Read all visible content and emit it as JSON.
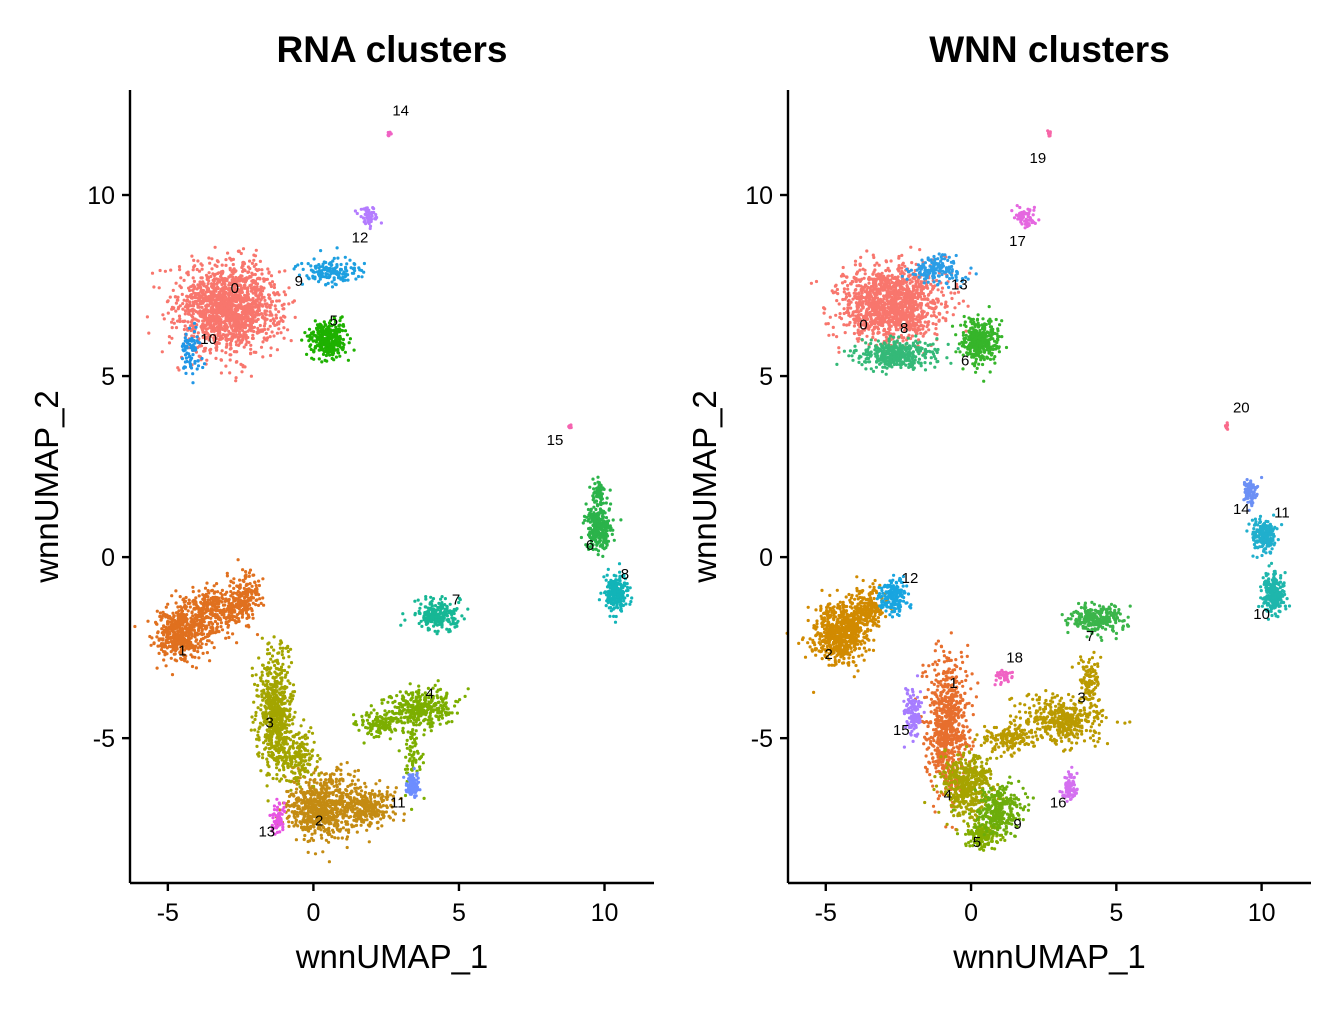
{
  "chart_data": [
    {
      "type": "scatter",
      "title": "RNA clusters",
      "xlabel": "wnnUMAP_1",
      "ylabel": "wnnUMAP_2",
      "xlim": [
        -6.3,
        11.7
      ],
      "ylim": [
        -9.0,
        12.9
      ],
      "xticks": [
        -5,
        0,
        5,
        10
      ],
      "yticks": [
        -5,
        0,
        5,
        10
      ],
      "xtick_labels": [
        "-5",
        "0",
        "5",
        "10"
      ],
      "ytick_labels": [
        "-5",
        "0",
        "5",
        "10"
      ],
      "grid": false,
      "legend": "none",
      "clusters": [
        {
          "label": "0",
          "color": "#F8766D",
          "blobs": [
            [
              -2.9,
              6.9,
              1.6,
              1.1,
              1500
            ]
          ],
          "label_pos": [
            -2.7,
            7.4
          ]
        },
        {
          "label": "1",
          "color": "#E0701F",
          "blobs": [
            [
              -4.6,
              -2.1,
              0.75,
              0.65,
              500
            ],
            [
              -3.4,
              -1.5,
              0.9,
              0.6,
              300
            ],
            [
              -2.4,
              -1.1,
              0.5,
              0.6,
              180
            ]
          ],
          "label_pos": [
            -4.5,
            -2.6
          ]
        },
        {
          "label": "2",
          "color": "#C48B12",
          "blobs": [
            [
              0.3,
              -6.9,
              1.1,
              0.8,
              700
            ],
            [
              1.9,
              -6.9,
              0.8,
              0.45,
              250
            ]
          ],
          "label_pos": [
            0.2,
            -7.3
          ]
        },
        {
          "label": "3",
          "color": "#A3A500",
          "blobs": [
            [
              -1.3,
              -4.3,
              0.55,
              1.4,
              600
            ],
            [
              -0.6,
              -5.5,
              0.6,
              0.7,
              200
            ]
          ],
          "label_pos": [
            -1.5,
            -4.6
          ]
        },
        {
          "label": "4",
          "color": "#7CAE00",
          "blobs": [
            [
              3.7,
              -4.2,
              1.0,
              0.5,
              320
            ],
            [
              2.3,
              -4.6,
              0.7,
              0.3,
              120
            ],
            [
              3.4,
              -5.5,
              0.3,
              0.9,
              80
            ]
          ],
          "label_pos": [
            4.0,
            -3.8
          ]
        },
        {
          "label": "5",
          "color": "#1EB100",
          "blobs": [
            [
              0.5,
              6.0,
              0.55,
              0.45,
              350
            ]
          ],
          "label_pos": [
            0.7,
            6.5
          ]
        },
        {
          "label": "6",
          "color": "#2BB34A",
          "blobs": [
            [
              9.8,
              0.8,
              0.4,
              0.6,
              280
            ],
            [
              9.8,
              1.8,
              0.2,
              0.3,
              60
            ]
          ],
          "label_pos": [
            9.5,
            0.3
          ]
        },
        {
          "label": "7",
          "color": "#17B795",
          "blobs": [
            [
              4.2,
              -1.6,
              0.7,
              0.4,
              220
            ]
          ],
          "label_pos": [
            4.9,
            -1.2
          ]
        },
        {
          "label": "8",
          "color": "#12B4B8",
          "blobs": [
            [
              10.4,
              -1.0,
              0.35,
              0.45,
              220
            ]
          ],
          "label_pos": [
            10.7,
            -0.5
          ]
        },
        {
          "label": "9",
          "color": "#1D9FE0",
          "blobs": [
            [
              0.6,
              7.9,
              0.9,
              0.35,
              150
            ]
          ],
          "label_pos": [
            -0.5,
            7.6
          ]
        },
        {
          "label": "10",
          "color": "#2196E6",
          "blobs": [
            [
              -4.2,
              5.7,
              0.3,
              0.55,
              80
            ]
          ],
          "label_pos": [
            -3.6,
            6.0
          ]
        },
        {
          "label": "11",
          "color": "#6D8DFF",
          "blobs": [
            [
              3.4,
              -6.3,
              0.2,
              0.35,
              90
            ]
          ],
          "label_pos": [
            2.9,
            -6.8
          ]
        },
        {
          "label": "12",
          "color": "#B47CFF",
          "blobs": [
            [
              1.9,
              9.4,
              0.3,
              0.2,
              50
            ]
          ],
          "label_pos": [
            1.6,
            8.8
          ]
        },
        {
          "label": "13",
          "color": "#E754E2",
          "blobs": [
            [
              -1.2,
              -7.2,
              0.2,
              0.35,
              60
            ]
          ],
          "label_pos": [
            -1.6,
            -7.6
          ]
        },
        {
          "label": "14",
          "color": "#F062C4",
          "blobs": [
            [
              2.6,
              11.7,
              0.05,
              0.06,
              10
            ]
          ],
          "label_pos": [
            3.0,
            12.3
          ]
        },
        {
          "label": "15",
          "color": "#F564B0",
          "blobs": [
            [
              8.8,
              3.6,
              0.06,
              0.06,
              10
            ]
          ],
          "label_pos": [
            8.3,
            3.2
          ]
        }
      ]
    },
    {
      "type": "scatter",
      "title": "WNN clusters",
      "xlabel": "wnnUMAP_1",
      "ylabel": "wnnUMAP_2",
      "xlim": [
        -6.3,
        11.7
      ],
      "ylim": [
        -9.0,
        12.9
      ],
      "xticks": [
        -5,
        0,
        5,
        10
      ],
      "yticks": [
        -5,
        0,
        5,
        10
      ],
      "xtick_labels": [
        "-5",
        "0",
        "5",
        "10"
      ],
      "ytick_labels": [
        "-5",
        "0",
        "5",
        "10"
      ],
      "grid": false,
      "legend": "none",
      "clusters": [
        {
          "label": "0",
          "color": "#F8766D",
          "blobs": [
            [
              -2.7,
              7.0,
              1.55,
              0.95,
              1300
            ]
          ],
          "label_pos": [
            -3.7,
            6.4
          ]
        },
        {
          "label": "1",
          "color": "#E76F2E",
          "blobs": [
            [
              -0.8,
              -4.6,
              0.6,
              1.7,
              700
            ]
          ],
          "label_pos": [
            -0.6,
            -3.5
          ]
        },
        {
          "label": "2",
          "color": "#D18A00",
          "blobs": [
            [
              -4.5,
              -2.1,
              0.85,
              0.75,
              650
            ],
            [
              -3.6,
              -1.4,
              0.6,
              0.5,
              200
            ]
          ],
          "label_pos": [
            -4.9,
            -2.7
          ]
        },
        {
          "label": "3",
          "color": "#BA9A00",
          "blobs": [
            [
              3.2,
              -4.5,
              1.3,
              0.55,
              400
            ],
            [
              1.3,
              -5.0,
              0.8,
              0.35,
              150
            ],
            [
              4.1,
              -3.5,
              0.35,
              0.6,
              100
            ]
          ],
          "label_pos": [
            3.8,
            -3.9
          ]
        },
        {
          "label": "4",
          "color": "#A6A300",
          "blobs": [
            [
              -0.1,
              -6.3,
              0.75,
              0.8,
              450
            ]
          ],
          "label_pos": [
            -0.8,
            -6.6
          ]
        },
        {
          "label": "5",
          "color": "#82AD00",
          "blobs": [
            [
              0.4,
              -7.7,
              0.55,
              0.3,
              160
            ]
          ],
          "label_pos": [
            0.2,
            -7.9
          ]
        },
        {
          "label": "6",
          "color": "#36B52A",
          "blobs": [
            [
              0.3,
              6.0,
              0.55,
              0.55,
              380
            ]
          ],
          "label_pos": [
            -0.2,
            5.4
          ]
        },
        {
          "label": "7",
          "color": "#3BB54A",
          "blobs": [
            [
              4.3,
              -1.7,
              0.8,
              0.35,
              260
            ]
          ],
          "label_pos": [
            4.1,
            -2.2
          ]
        },
        {
          "label": "8",
          "color": "#35B978",
          "blobs": [
            [
              -2.6,
              5.6,
              1.2,
              0.35,
              380
            ]
          ],
          "label_pos": [
            -2.3,
            6.3
          ]
        },
        {
          "label": "9",
          "color": "#6DAD0B",
          "blobs": [
            [
              1.0,
              -7.0,
              0.7,
              0.55,
              300
            ]
          ],
          "label_pos": [
            1.6,
            -7.4
          ]
        },
        {
          "label": "10",
          "color": "#1FB6AC",
          "blobs": [
            [
              10.4,
              -1.0,
              0.35,
              0.5,
              230
            ]
          ],
          "label_pos": [
            10.0,
            -1.6
          ]
        },
        {
          "label": "11",
          "color": "#21AFCD",
          "blobs": [
            [
              10.1,
              0.6,
              0.4,
              0.4,
              200
            ]
          ],
          "label_pos": [
            10.7,
            1.2
          ]
        },
        {
          "label": "12",
          "color": "#19A5E0",
          "blobs": [
            [
              -2.7,
              -1.1,
              0.45,
              0.45,
              180
            ]
          ],
          "label_pos": [
            -2.1,
            -0.6
          ]
        },
        {
          "label": "13",
          "color": "#2A9DE6",
          "blobs": [
            [
              -1.2,
              7.9,
              0.9,
              0.35,
              160
            ]
          ],
          "label_pos": [
            -0.4,
            7.5
          ]
        },
        {
          "label": "14",
          "color": "#6C90F5",
          "blobs": [
            [
              9.6,
              1.8,
              0.25,
              0.3,
              80
            ]
          ],
          "label_pos": [
            9.3,
            1.3
          ]
        },
        {
          "label": "15",
          "color": "#A77DFF",
          "blobs": [
            [
              -2.0,
              -4.3,
              0.25,
              0.7,
              120
            ]
          ],
          "label_pos": [
            -2.4,
            -4.8
          ]
        },
        {
          "label": "16",
          "color": "#D470F0",
          "blobs": [
            [
              3.4,
              -6.4,
              0.2,
              0.35,
              80
            ]
          ],
          "label_pos": [
            3.0,
            -6.8
          ]
        },
        {
          "label": "17",
          "color": "#E567E0",
          "blobs": [
            [
              1.9,
              9.4,
              0.35,
              0.25,
              60
            ]
          ],
          "label_pos": [
            1.6,
            8.7
          ]
        },
        {
          "label": "18",
          "color": "#F063C4",
          "blobs": [
            [
              1.1,
              -3.3,
              0.3,
              0.15,
              40
            ]
          ],
          "label_pos": [
            1.5,
            -2.8
          ]
        },
        {
          "label": "19",
          "color": "#F766A8",
          "blobs": [
            [
              2.7,
              11.7,
              0.06,
              0.07,
              12
            ]
          ],
          "label_pos": [
            2.3,
            11.0
          ]
        },
        {
          "label": "20",
          "color": "#FA6B8B",
          "blobs": [
            [
              8.8,
              3.6,
              0.06,
              0.06,
              12
            ]
          ],
          "label_pos": [
            9.3,
            4.1
          ]
        }
      ]
    }
  ]
}
